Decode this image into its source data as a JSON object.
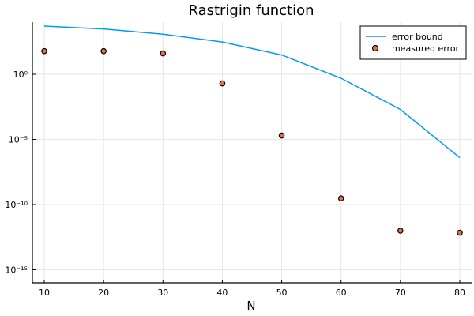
{
  "chart_data": {
    "type": "line",
    "title": "Rastrigin function",
    "xlabel": "N",
    "ylabel": "",
    "yscale": "log10",
    "xlim": [
      8,
      82
    ],
    "ylim": [
      1e-16,
      10000.0
    ],
    "xticks": [
      10,
      20,
      30,
      40,
      50,
      60,
      70,
      80
    ],
    "yticks": [
      {
        "value": 1,
        "label": "10⁰"
      },
      {
        "value": 1e-05,
        "label": "10⁻⁵"
      },
      {
        "value": 1e-10,
        "label": "10⁻¹⁰"
      },
      {
        "value": 1e-15,
        "label": "10⁻¹⁵"
      }
    ],
    "grid": true,
    "legend_position": "top-right",
    "series": [
      {
        "name": "error bound",
        "kind": "line",
        "color": "#009af9",
        "x": [
          10,
          20,
          30,
          40,
          50,
          60,
          70,
          80
        ],
        "y": [
          5000,
          3000,
          1200,
          300,
          30,
          0.5,
          0.002,
          4e-07
        ]
      },
      {
        "name": "measured error",
        "kind": "scatter",
        "color": "#e26f46",
        "x": [
          10,
          20,
          30,
          40,
          50,
          60,
          70,
          80
        ],
        "y": [
          60,
          60,
          40,
          0.2,
          2e-05,
          3e-10,
          1e-12,
          7e-13
        ]
      }
    ]
  }
}
